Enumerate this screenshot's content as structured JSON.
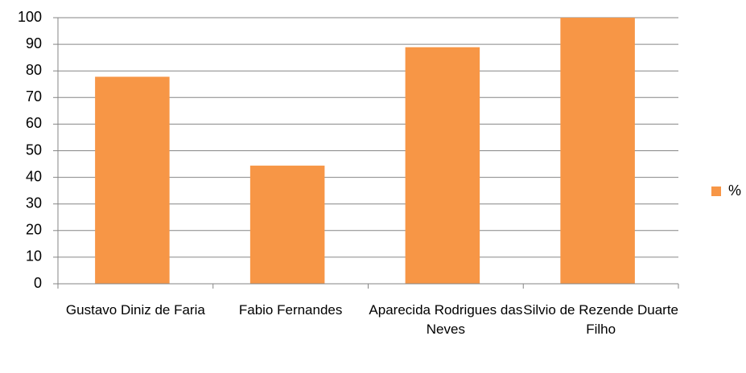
{
  "chart_data": {
    "type": "bar",
    "categories": [
      "Gustavo Diniz de Faria",
      "Fabio Fernandes",
      "Aparecida Rodrigues das Neves",
      "Silvio de Rezende Duarte Filho"
    ],
    "series": [
      {
        "name": "%",
        "color": "#f79646",
        "values": [
          77.8,
          44.4,
          88.9,
          100
        ]
      }
    ],
    "ylim": [
      0,
      100
    ],
    "yticks": [
      0,
      10,
      20,
      30,
      40,
      50,
      60,
      70,
      80,
      90,
      100
    ],
    "grid": true,
    "legend": "right"
  }
}
